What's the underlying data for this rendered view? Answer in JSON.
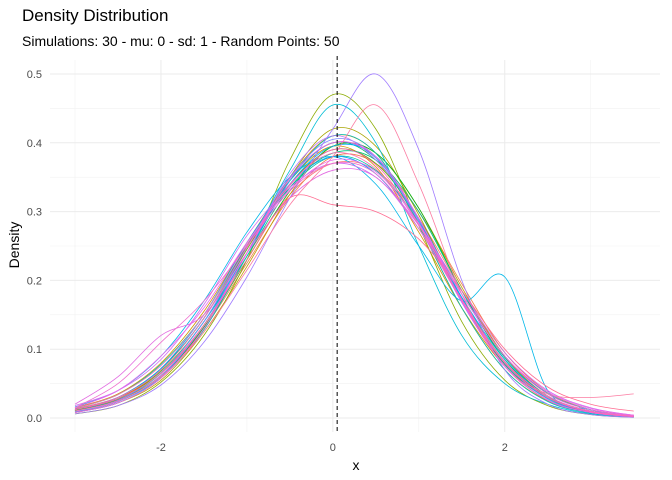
{
  "title": "Density Distribution",
  "subtitle": "Simulations: 30 - mu: 0 - sd: 1 - Random Points: 50",
  "chart_data": {
    "type": "line",
    "xlabel": "x",
    "ylabel": "Density",
    "xlim": [
      -3.0,
      3.55
    ],
    "ylim": [
      0,
      0.5
    ],
    "x_ticks": [
      -2,
      0,
      2
    ],
    "y_ticks": [
      0.0,
      0.1,
      0.2,
      0.3,
      0.4,
      0.5
    ],
    "x_tick_labels": [
      "-2",
      "0",
      "2"
    ],
    "y_tick_labels": [
      "0.0",
      "0.1",
      "0.2",
      "0.3",
      "0.4",
      "0.5"
    ],
    "grid": true,
    "legend": "none",
    "reference_line": {
      "x": 0.05,
      "style": "dashed"
    },
    "series_x": [
      -3.0,
      -2.5,
      -2.0,
      -1.5,
      -1.0,
      -0.5,
      0.0,
      0.5,
      1.0,
      1.5,
      2.0,
      2.5,
      3.0,
      3.5
    ],
    "series": [
      {
        "color": "#F8766D",
        "values": [
          0.013,
          0.03,
          0.065,
          0.135,
          0.235,
          0.325,
          0.37,
          0.36,
          0.29,
          0.185,
          0.09,
          0.035,
          0.012,
          0.004
        ]
      },
      {
        "color": "#EF7F49",
        "values": [
          0.01,
          0.025,
          0.06,
          0.13,
          0.225,
          0.32,
          0.38,
          0.37,
          0.3,
          0.195,
          0.095,
          0.038,
          0.012,
          0.003
        ]
      },
      {
        "color": "#E38900",
        "values": [
          0.012,
          0.028,
          0.07,
          0.145,
          0.25,
          0.35,
          0.41,
          0.385,
          0.28,
          0.16,
          0.07,
          0.025,
          0.008,
          0.002
        ]
      },
      {
        "color": "#D39200",
        "values": [
          0.015,
          0.035,
          0.08,
          0.155,
          0.255,
          0.345,
          0.395,
          0.365,
          0.27,
          0.16,
          0.075,
          0.03,
          0.01,
          0.003
        ]
      },
      {
        "color": "#C09B00",
        "values": [
          0.008,
          0.022,
          0.055,
          0.125,
          0.22,
          0.325,
          0.395,
          0.385,
          0.305,
          0.19,
          0.09,
          0.032,
          0.01,
          0.003
        ]
      },
      {
        "color": "#A8A400",
        "values": [
          0.01,
          0.026,
          0.062,
          0.135,
          0.24,
          0.35,
          0.42,
          0.395,
          0.295,
          0.17,
          0.075,
          0.026,
          0.008,
          0.002
        ]
      },
      {
        "color": "#8BAB00",
        "values": [
          0.006,
          0.018,
          0.052,
          0.12,
          0.23,
          0.375,
          0.47,
          0.42,
          0.28,
          0.14,
          0.055,
          0.018,
          0.005,
          0.001
        ]
      },
      {
        "color": "#64B200",
        "values": [
          0.011,
          0.027,
          0.068,
          0.14,
          0.245,
          0.34,
          0.39,
          0.37,
          0.29,
          0.175,
          0.082,
          0.03,
          0.009,
          0.002
        ]
      },
      {
        "color": "#00B81F",
        "values": [
          0.009,
          0.024,
          0.06,
          0.132,
          0.23,
          0.33,
          0.395,
          0.385,
          0.305,
          0.185,
          0.085,
          0.03,
          0.009,
          0.002
        ]
      },
      {
        "color": "#00BC56",
        "values": [
          0.012,
          0.03,
          0.072,
          0.145,
          0.25,
          0.345,
          0.4,
          0.375,
          0.285,
          0.17,
          0.078,
          0.028,
          0.008,
          0.002
        ]
      },
      {
        "color": "#00BF7D",
        "values": [
          0.01,
          0.028,
          0.065,
          0.14,
          0.235,
          0.335,
          0.385,
          0.375,
          0.3,
          0.185,
          0.088,
          0.032,
          0.01,
          0.003
        ]
      },
      {
        "color": "#00C19F",
        "values": [
          0.014,
          0.034,
          0.078,
          0.15,
          0.25,
          0.335,
          0.38,
          0.36,
          0.285,
          0.18,
          0.09,
          0.036,
          0.012,
          0.003
        ]
      },
      {
        "color": "#00C0BB",
        "values": [
          0.008,
          0.022,
          0.058,
          0.128,
          0.235,
          0.345,
          0.41,
          0.385,
          0.28,
          0.16,
          0.07,
          0.024,
          0.007,
          0.002
        ]
      },
      {
        "color": "#00BDD4",
        "values": [
          0.012,
          0.03,
          0.07,
          0.145,
          0.248,
          0.36,
          0.455,
          0.4,
          0.25,
          0.12,
          0.05,
          0.02,
          0.006,
          0.002
        ]
      },
      {
        "color": "#00B7E8",
        "values": [
          0.016,
          0.04,
          0.09,
          0.17,
          0.27,
          0.35,
          0.38,
          0.34,
          0.25,
          0.17,
          0.205,
          0.04,
          0.012,
          0.003
        ]
      },
      {
        "color": "#00AEFA",
        "values": [
          0.01,
          0.026,
          0.065,
          0.14,
          0.24,
          0.34,
          0.395,
          0.38,
          0.29,
          0.175,
          0.08,
          0.028,
          0.008,
          0.002
        ]
      },
      {
        "color": "#00A3FF",
        "values": [
          0.012,
          0.03,
          0.072,
          0.15,
          0.255,
          0.34,
          0.38,
          0.355,
          0.275,
          0.175,
          0.085,
          0.032,
          0.01,
          0.003
        ]
      },
      {
        "color": "#3F96FF",
        "values": [
          0.009,
          0.024,
          0.06,
          0.135,
          0.24,
          0.345,
          0.4,
          0.378,
          0.288,
          0.172,
          0.08,
          0.028,
          0.008,
          0.002
        ]
      },
      {
        "color": "#7C87FF",
        "values": [
          0.01,
          0.026,
          0.066,
          0.14,
          0.248,
          0.35,
          0.405,
          0.38,
          0.285,
          0.168,
          0.076,
          0.026,
          0.008,
          0.002
        ]
      },
      {
        "color": "#A07CFF",
        "values": [
          0.006,
          0.018,
          0.048,
          0.11,
          0.205,
          0.32,
          0.42,
          0.5,
          0.39,
          0.2,
          0.07,
          0.02,
          0.005,
          0.001
        ]
      },
      {
        "color": "#BB73FF",
        "values": [
          0.01,
          0.024,
          0.062,
          0.135,
          0.24,
          0.355,
          0.41,
          0.375,
          0.29,
          0.168,
          0.075,
          0.026,
          0.008,
          0.002
        ]
      },
      {
        "color": "#D16AF0",
        "values": [
          0.018,
          0.04,
          0.085,
          0.165,
          0.265,
          0.335,
          0.37,
          0.35,
          0.28,
          0.185,
          0.095,
          0.04,
          0.015,
          0.004
        ]
      },
      {
        "color": "#E26BE1",
        "values": [
          0.02,
          0.06,
          0.12,
          0.15,
          0.24,
          0.32,
          0.36,
          0.35,
          0.275,
          0.18,
          0.09,
          0.035,
          0.012,
          0.003
        ]
      },
      {
        "color": "#EE6FCF",
        "values": [
          0.015,
          0.05,
          0.11,
          0.17,
          0.25,
          0.33,
          0.37,
          0.355,
          0.275,
          0.17,
          0.08,
          0.03,
          0.01,
          0.003
        ]
      },
      {
        "color": "#F775B9",
        "values": [
          0.014,
          0.034,
          0.076,
          0.15,
          0.252,
          0.34,
          0.385,
          0.362,
          0.28,
          0.172,
          0.082,
          0.032,
          0.01,
          0.003
        ]
      },
      {
        "color": "#FC7CA2",
        "values": [
          0.01,
          0.025,
          0.06,
          0.125,
          0.215,
          0.31,
          0.38,
          0.455,
          0.34,
          0.18,
          0.075,
          0.035,
          0.03,
          0.035
        ]
      },
      {
        "color": "#FF6C91",
        "values": [
          0.012,
          0.028,
          0.065,
          0.135,
          0.23,
          0.32,
          0.31,
          0.3,
          0.26,
          0.185,
          0.1,
          0.045,
          0.02,
          0.01
        ]
      },
      {
        "color": "#FA62DB",
        "values": [
          0.008,
          0.022,
          0.058,
          0.13,
          0.24,
          0.348,
          0.4,
          0.38,
          0.29,
          0.17,
          0.075,
          0.026,
          0.008,
          0.002
        ]
      },
      {
        "color": "#FF62BC",
        "values": [
          0.012,
          0.03,
          0.07,
          0.145,
          0.248,
          0.338,
          0.39,
          0.368,
          0.282,
          0.172,
          0.08,
          0.03,
          0.009,
          0.002
        ]
      },
      {
        "color": "#ED68ED",
        "values": [
          0.015,
          0.04,
          0.09,
          0.16,
          0.255,
          0.332,
          0.375,
          0.358,
          0.282,
          0.18,
          0.09,
          0.038,
          0.014,
          0.004
        ]
      }
    ]
  }
}
